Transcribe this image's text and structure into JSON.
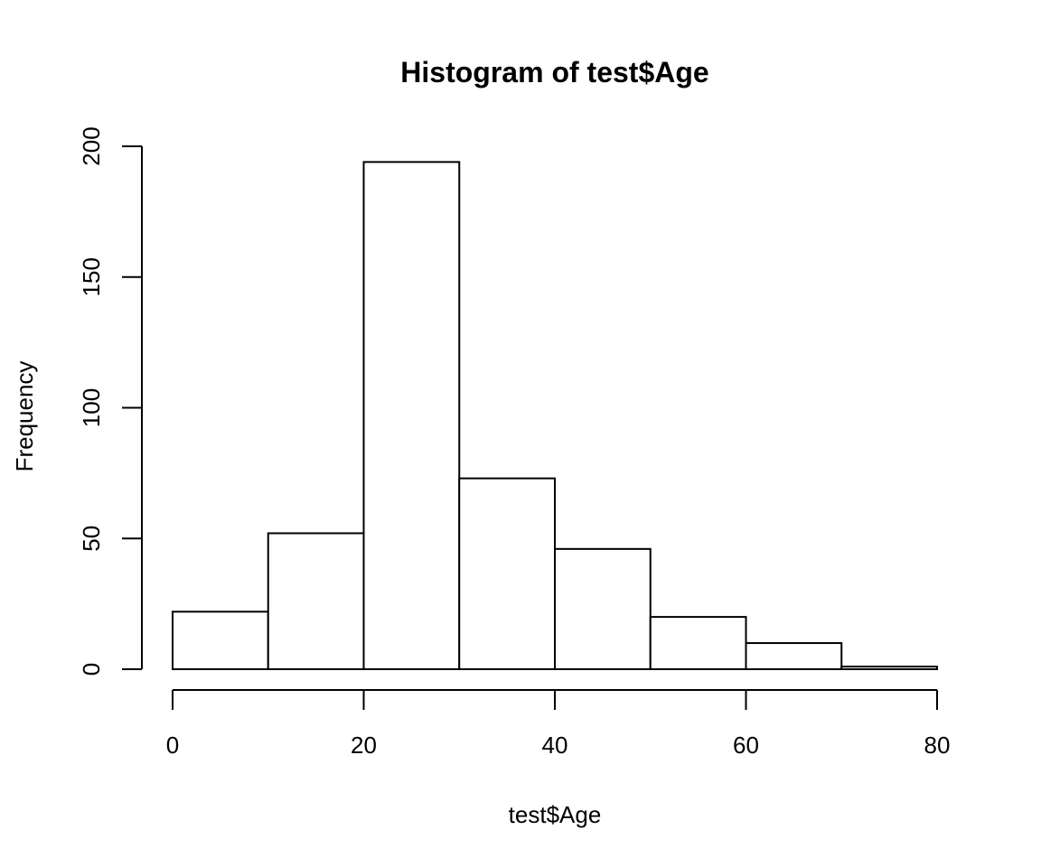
{
  "chart_data": {
    "type": "bar",
    "title": "Histogram of test$Age",
    "xlabel": "test$Age",
    "ylabel": "Frequency",
    "bins": [
      {
        "from": 0,
        "to": 10,
        "count": 22
      },
      {
        "from": 10,
        "to": 20,
        "count": 52
      },
      {
        "from": 20,
        "to": 30,
        "count": 194
      },
      {
        "from": 30,
        "to": 40,
        "count": 73
      },
      {
        "from": 40,
        "to": 50,
        "count": 46
      },
      {
        "from": 50,
        "to": 60,
        "count": 20
      },
      {
        "from": 60,
        "to": 70,
        "count": 10
      },
      {
        "from": 70,
        "to": 80,
        "count": 1
      }
    ],
    "xlim": [
      0,
      80
    ],
    "ylim": [
      0,
      200
    ],
    "x_ticks": [
      0,
      20,
      40,
      60,
      80
    ],
    "y_ticks": [
      0,
      50,
      100,
      150,
      200
    ],
    "grid": false,
    "legend": "none"
  }
}
